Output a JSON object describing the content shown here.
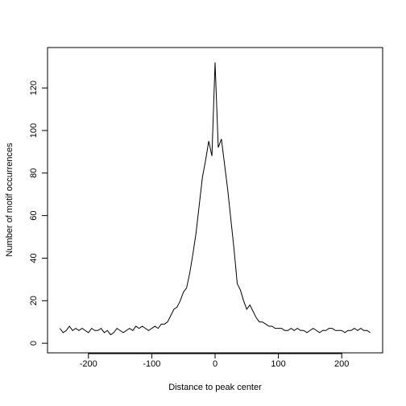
{
  "chart_data": {
    "type": "line",
    "x_label": "Distance to peak center",
    "y_label": "Number of motif occurrences",
    "x": [
      -245,
      -240,
      -235,
      -230,
      -225,
      -220,
      -215,
      -210,
      -205,
      -200,
      -195,
      -190,
      -185,
      -180,
      -175,
      -170,
      -165,
      -160,
      -155,
      -150,
      -145,
      -140,
      -135,
      -130,
      -125,
      -120,
      -115,
      -110,
      -105,
      -100,
      -95,
      -90,
      -85,
      -80,
      -75,
      -70,
      -65,
      -60,
      -55,
      -50,
      -45,
      -40,
      -35,
      -30,
      -25,
      -20,
      -15,
      -10,
      -5,
      0,
      5,
      10,
      15,
      20,
      25,
      30,
      35,
      40,
      45,
      50,
      55,
      60,
      65,
      70,
      75,
      80,
      85,
      90,
      95,
      100,
      105,
      110,
      115,
      120,
      125,
      130,
      135,
      140,
      145,
      150,
      155,
      160,
      165,
      170,
      175,
      180,
      185,
      190,
      195,
      200,
      205,
      210,
      215,
      220,
      225,
      230,
      235,
      240,
      245
    ],
    "series": [
      {
        "color": "#000000",
        "values": [
          7,
          5,
          6,
          8,
          6,
          7,
          6,
          7,
          6,
          5,
          7,
          6,
          6,
          7,
          5,
          6,
          4,
          5,
          7,
          6,
          5,
          6,
          7,
          6,
          8,
          7,
          8,
          7,
          6,
          7,
          8,
          7,
          9,
          9,
          10,
          13,
          16,
          17,
          20,
          24,
          26,
          33,
          42,
          52,
          65,
          78,
          86,
          95,
          88,
          132,
          92,
          96,
          84,
          72,
          58,
          44,
          28,
          25,
          20,
          16,
          18,
          15,
          12,
          10,
          10,
          9,
          8,
          8,
          7,
          7,
          7,
          6,
          6,
          7,
          6,
          7,
          6,
          6,
          5,
          6,
          7,
          6,
          5,
          6,
          6,
          7,
          7,
          6,
          6,
          6,
          5,
          6,
          6,
          7,
          6,
          7,
          6,
          6,
          5
        ]
      }
    ],
    "xlim": [
      -264.6,
      264.6
    ],
    "xticks": [
      -200,
      -100,
      0,
      100,
      200
    ],
    "ylim": [
      -4.5,
      139
    ],
    "yticks": [
      0,
      20,
      40,
      60,
      80,
      100,
      120
    ]
  }
}
